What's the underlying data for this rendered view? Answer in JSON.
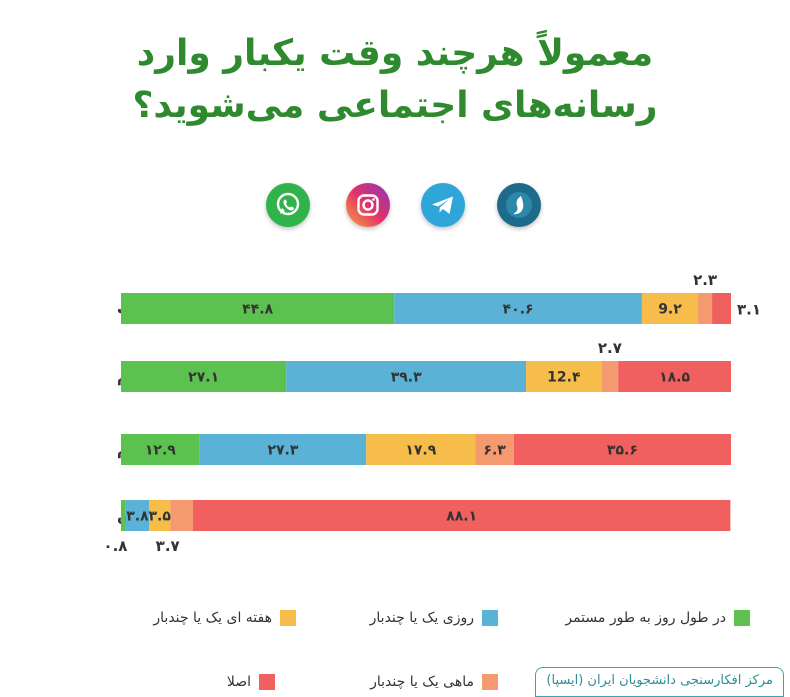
{
  "title": {
    "line1": "معمولاً هرچند وقت یکبار وارد",
    "line2": "رسانه‌های اجتماعی می‌شوید؟"
  },
  "icons": [
    {
      "name": "whatsapp-icon",
      "color": "#2fb34a"
    },
    {
      "name": "instagram-icon",
      "color": "#d6249f"
    },
    {
      "name": "telegram-icon",
      "color": "#2ea6d9"
    },
    {
      "name": "soroush-icon",
      "color": "#1e6a8a"
    }
  ],
  "colors": {
    "green": "#5cc24f",
    "blue": "#5ab3d6",
    "yellow": "#f7bd4b",
    "orange": "#f59a6e",
    "red": "#f0605e"
  },
  "legend": [
    {
      "label": "در طول روز به طور مستمر",
      "color": "#5cc24f"
    },
    {
      "label": "روزی یک یا چندبار",
      "color": "#5ab3d6"
    },
    {
      "label": "هفته ای یک یا چندبار",
      "color": "#f7bd4b"
    },
    {
      "label": "ماهی یک یا چندبار",
      "color": "#f59a6e"
    },
    {
      "label": "اصلا",
      "color": "#f0605e"
    }
  ],
  "source": "مرکز افکارسنجی دانشجویان ایران (ایسپا)",
  "chart_data": {
    "type": "bar",
    "stacked": true,
    "orientation": "horizontal",
    "categories": [
      "واتس اپ",
      "اینستاگرام",
      "تلگرام",
      "سروش"
    ],
    "series": [
      {
        "name": "در طول روز به طور مستمر",
        "values": [
          44.8,
          27.1,
          12.9,
          0.8
        ],
        "labels": [
          "۴۴.۸",
          "۲۷.۱",
          "۱۲.۹",
          "۰.۸"
        ]
      },
      {
        "name": "روزی یک یا چندبار",
        "values": [
          40.6,
          39.3,
          27.3,
          3.8
        ],
        "labels": [
          "۴۰.۶",
          "۳۹.۳",
          "۲۷.۳",
          "۳.۸"
        ]
      },
      {
        "name": "هفته ای یک یا چندبار",
        "values": [
          9.2,
          12.4,
          17.9,
          3.5
        ],
        "labels": [
          "9.۲",
          "12.۴",
          "۱۷.۹",
          "۳.۵"
        ]
      },
      {
        "name": "ماهی یک یا چندبار",
        "values": [
          2.3,
          2.7,
          6.3,
          3.7
        ],
        "labels": [
          "۲.۳",
          "۲.۷",
          "۶.۳",
          "۳.۷"
        ]
      },
      {
        "name": "اصلا",
        "values": [
          3.1,
          18.5,
          35.6,
          88.1
        ],
        "labels": [
          "۳.۱",
          "۱۸.۵",
          "۳۵.۶",
          "۸۸.۱"
        ]
      }
    ],
    "xlim": [
      0,
      100
    ]
  }
}
